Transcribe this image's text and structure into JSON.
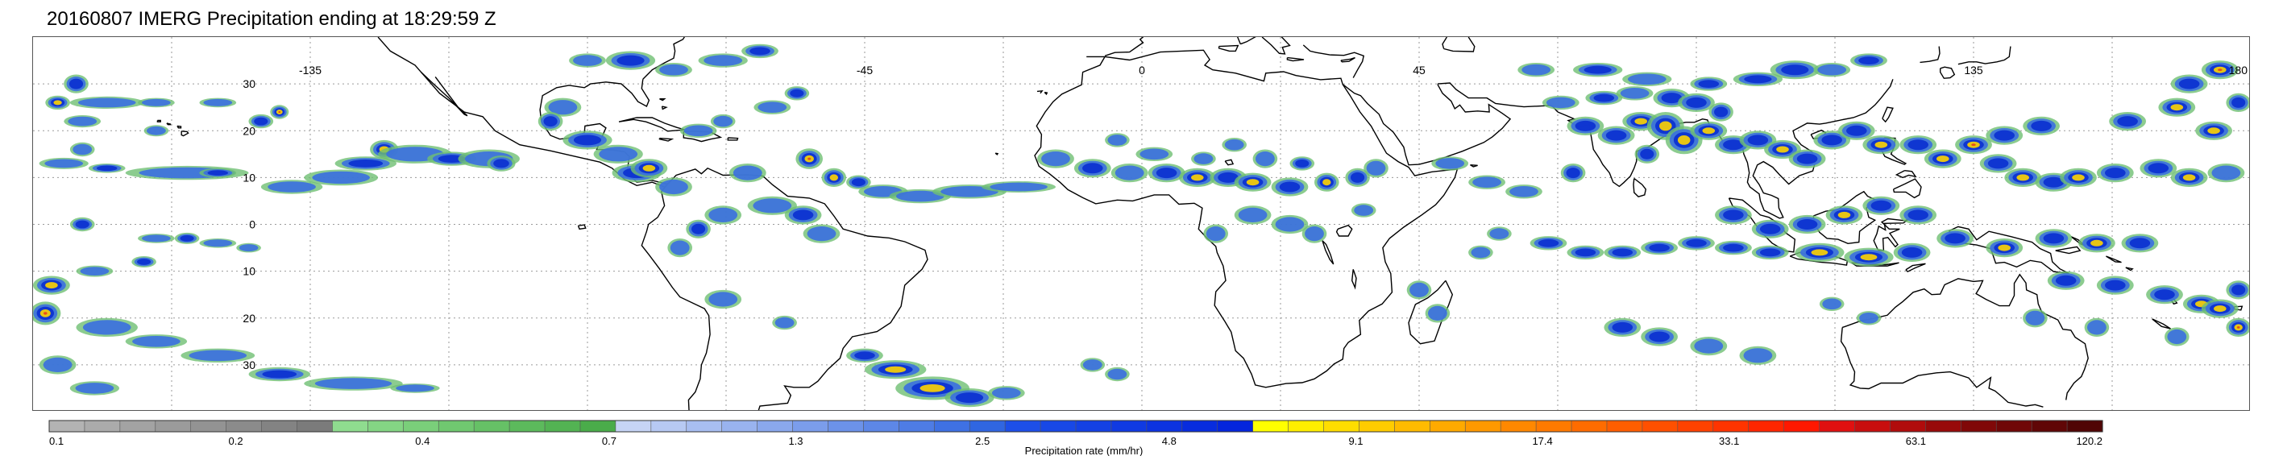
{
  "title": "20160807 IMERG Precipitation ending at 18:29:59 Z",
  "longitude_labels": [
    "-135",
    "-45",
    "0",
    "45",
    "135",
    "180"
  ],
  "latitude_labels": [
    "30",
    "20",
    "10",
    "0",
    "-10",
    "-20",
    "-30"
  ],
  "latitude_labels_shown": [
    "30",
    "20",
    "10",
    "0",
    "10",
    "20",
    "30"
  ],
  "colorbar": {
    "title": "Precipitation rate (mm/hr)",
    "tick_labels": [
      "0.1",
      "0.2",
      "0.4",
      "0.7",
      "1.3",
      "2.5",
      "4.8",
      "9.1",
      "17.4",
      "33.1",
      "63.1",
      "120.2"
    ],
    "segment_colors": [
      "#b3b3b3",
      "#ababab",
      "#a3a3a3",
      "#9b9b9b",
      "#939393",
      "#8b8b8b",
      "#838383",
      "#7b7b7b",
      "#8fdc8f",
      "#84d584",
      "#7acf7a",
      "#70c870",
      "#66c166",
      "#5cba5c",
      "#53b353",
      "#4aac4a",
      "#c6d4f5",
      "#b7c9f3",
      "#a8bef1",
      "#99b3ef",
      "#8aa8ed",
      "#7b9deb",
      "#6c92e9",
      "#5d87e7",
      "#4e7ce5",
      "#3f71e3",
      "#3066e1",
      "#1d4fe8",
      "#1848e6",
      "#1441e4",
      "#103ae2",
      "#0c33e0",
      "#082cde",
      "#0425dc",
      "#ffff00",
      "#ffee00",
      "#ffdd00",
      "#ffcc00",
      "#ffbb00",
      "#ffaa00",
      "#ff9900",
      "#ff8800",
      "#ff7a00",
      "#ff6c00",
      "#ff5e00",
      "#ff5000",
      "#ff4200",
      "#ff3400",
      "#ff2600",
      "#ff1800",
      "#e01010",
      "#c80e0e",
      "#b00c0c",
      "#980a0a",
      "#800808",
      "#700707",
      "#600606",
      "#500505"
    ]
  },
  "colors": {
    "light_rain": "#6fbf73",
    "moderate_rain": "#3a6fe0",
    "heavy_rain": "#0a2fd0",
    "intense_rain": "#ffd400",
    "extreme_rain": "#e8401c",
    "coastline": "#000000",
    "gridline": "#9a9a9a"
  }
}
